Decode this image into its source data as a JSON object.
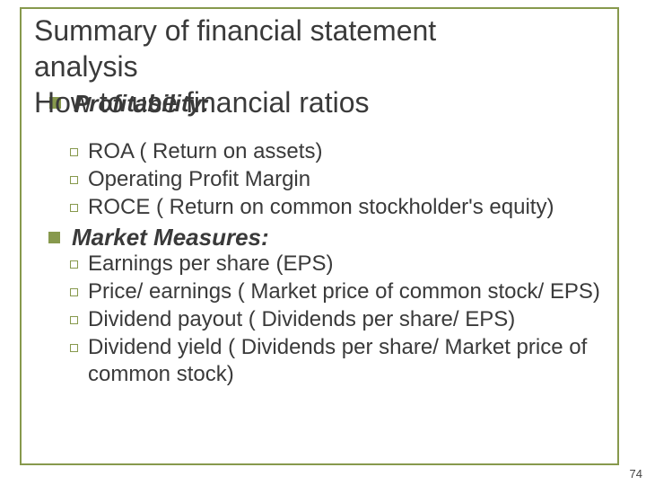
{
  "colors": {
    "frame": "#87994d",
    "text": "#3a3a3a",
    "bg": "#ffffff"
  },
  "title": {
    "line1": "Summary of financial statement",
    "line2": "analysis",
    "line3": "How to use financial ratios",
    "overlap": "Profitability:"
  },
  "body": {
    "profitability_items": [
      " ROA ( Return on assets)",
      " Operating Profit Margin",
      " ROCE ( Return on common stockholder's equity)"
    ],
    "market_heading": "Market Measures:",
    "market_items": [
      "Earnings per share (EPS)",
      "Price/ earnings ( Market price of common stock/ EPS)",
      "Dividend payout ( Dividends per share/ EPS)",
      "Dividend yield ( Dividends per share/ Market price of common stock)"
    ]
  },
  "page": "74"
}
